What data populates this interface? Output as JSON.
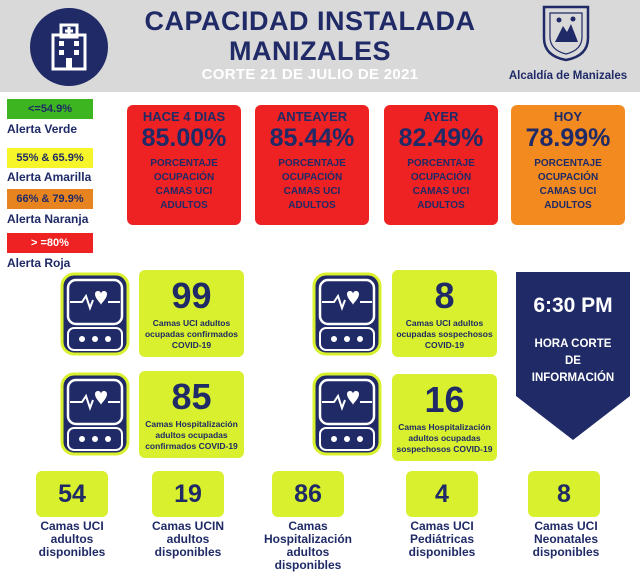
{
  "header": {
    "title_line1": "CAPACIDAD INSTALADA",
    "title_line2": "MANIZALES",
    "subtitle": "CORTE 21 DE JULIO DE 2021",
    "org": "Alcaldía de Manizales",
    "logo_icon": "hospital-building-icon",
    "crest_icon": "manizales-crest-icon"
  },
  "legend": [
    {
      "range": "<=54.9%",
      "label": "Alerta Verde",
      "color": "#3cb521"
    },
    {
      "range": "55% & 65.9%",
      "label": "Alerta Amarilla",
      "color": "#f5f52a"
    },
    {
      "range": "66% & 79.9%",
      "label": "Alerta Naranja",
      "color": "#e8841f"
    },
    {
      "range": "> =80%",
      "label": "Alerta Roja",
      "color": "#ee2222"
    }
  ],
  "occupancy": [
    {
      "when": "HACE 4 DIAS",
      "value": "85.00%",
      "desc1": "PORCENTAJE",
      "desc2": "OCUPACIÓN",
      "desc3": "CAMAS UCI",
      "desc4": "ADULTOS",
      "color": "#ee2222"
    },
    {
      "when": "ANTEAYER",
      "value": "85.44%",
      "desc1": "PORCENTAJE",
      "desc2": "OCUPACIÓN",
      "desc3": "CAMAS UCI",
      "desc4": "ADULTOS",
      "color": "#ee2222"
    },
    {
      "when": "AYER",
      "value": "82.49%",
      "desc1": "PORCENTAJE",
      "desc2": "OCUPACIÓN",
      "desc3": "CAMAS UCI",
      "desc4": "ADULTOS",
      "color": "#ee2222"
    },
    {
      "when": "HOY",
      "value": "78.99%",
      "desc1": "PORCENTAJE",
      "desc2": "OCUPACIÓN",
      "desc3": "CAMAS UCI",
      "desc4": "ADULTOS",
      "color": "#f28a1f"
    }
  ],
  "stats": [
    {
      "value": "99",
      "line1": "Camas UCI adultos",
      "line2": "ocupadas confirmados",
      "line3": "COVID-19"
    },
    {
      "value": "8",
      "line1": "Camas UCI adultos",
      "line2": "ocupadas sospechosos",
      "line3": "COVID-19"
    },
    {
      "value": "85",
      "line1": "Camas  Hospitalización",
      "line2": "adultos ocupadas",
      "line3": "confirmados COVID-19"
    },
    {
      "value": "16",
      "line1": "Camas  Hospitalización",
      "line2": "adultos ocupadas",
      "line3": "sospechosos COVID-19"
    }
  ],
  "cut_time": {
    "time": "6:30 PM",
    "caption1": "HORA CORTE",
    "caption2": "DE",
    "caption3": "INFORMACIÓN"
  },
  "available": [
    {
      "value": "54",
      "line1": "Camas UCI",
      "line2": "adultos",
      "line3": "disponibles",
      "line4": ""
    },
    {
      "value": "19",
      "line1": "Camas UCIN",
      "line2": "adultos",
      "line3": "disponibles",
      "line4": ""
    },
    {
      "value": "86",
      "line1": "Camas",
      "line2": "Hospitalización",
      "line3": "adultos",
      "line4": "disponibles"
    },
    {
      "value": "4",
      "line1": "Camas  UCI",
      "line2": "Pediátricas",
      "line3": "disponibles",
      "line4": ""
    },
    {
      "value": "8",
      "line1": "Camas  UCI",
      "line2": "Neonatales",
      "line3": "disponibles",
      "line4": ""
    }
  ],
  "monitor_icon": "heart-rate-monitor-icon",
  "colors": {
    "navy": "#1f2a66",
    "lime": "#d8f02d",
    "header_bg": "#d9d9d9"
  }
}
